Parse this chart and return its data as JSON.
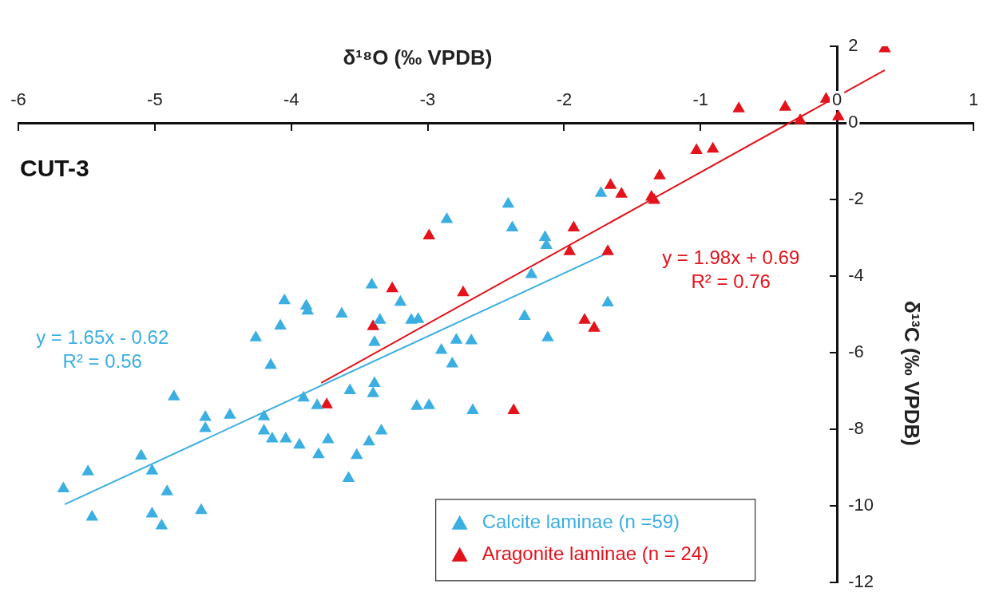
{
  "chart_data": {
    "type": "scatter",
    "xlabel": "δ¹⁸O (‰ VPDB)",
    "ylabel": "δ¹³C (‰ VPDB)",
    "xlim": [
      -6,
      1
    ],
    "xticks": [
      -6,
      -5,
      -4,
      -3,
      -2,
      -1,
      0,
      1
    ],
    "ylim": [
      -12,
      2
    ],
    "yticks": [
      -12,
      -10,
      -8,
      -6,
      -4,
      -2,
      0,
      2
    ],
    "grid": false,
    "legend": "bottom right",
    "annotations": [
      "CUT-3",
      "y = 1.65x - 0.62\nR² = 0.56",
      "y = 1.98x + 0.69\nR² = 0.76"
    ],
    "series": [
      {
        "name": "Calcite laminae (n =59)",
        "color": "#3baee2",
        "marker": "triangle",
        "x": [
          -5.67,
          -5.49,
          -5.46,
          -5.1,
          -5.02,
          -4.91,
          -5.02,
          -4.95,
          -4.86,
          -4.66,
          -4.63,
          -4.63,
          -4.45,
          -4.26,
          -4.2,
          -4.2,
          -4.15,
          -4.14,
          -4.04,
          -4.08,
          -4.05,
          -3.94,
          -3.91,
          -3.89,
          -3.88,
          -3.81,
          -3.8,
          -3.73,
          -3.63,
          -3.58,
          -3.57,
          -3.52,
          -3.43,
          -3.41,
          -3.4,
          -3.39,
          -3.39,
          -3.35,
          -3.34,
          -3.2,
          -3.12,
          -3.07,
          -3.08,
          -2.99,
          -2.9,
          -2.82,
          -2.79,
          -2.86,
          -2.67,
          -2.68,
          -2.41,
          -2.38,
          -2.29,
          -2.24,
          -2.14,
          -2.13,
          -2.12,
          -1.73,
          -1.68
        ],
        "values": [
          -9.55,
          -9.11,
          -10.29,
          -8.7,
          -9.09,
          -9.63,
          -10.21,
          -10.52,
          -7.15,
          -10.12,
          -7.69,
          -7.98,
          -7.63,
          -5.61,
          -7.67,
          -8.04,
          -6.33,
          -8.25,
          -8.25,
          -5.3,
          -4.64,
          -8.41,
          -7.18,
          -4.78,
          -4.91,
          -7.38,
          -8.66,
          -8.27,
          -4.99,
          -9.28,
          -6.99,
          -8.68,
          -8.33,
          -4.23,
          -7.07,
          -6.8,
          -5.73,
          -5.15,
          -8.04,
          -4.68,
          -5.15,
          -5.13,
          -7.4,
          -7.38,
          -5.94,
          -6.29,
          -5.67,
          -2.52,
          -7.51,
          -5.69,
          -2.12,
          -2.74,
          -5.05,
          -3.96,
          -2.99,
          -3.2,
          -5.61,
          -1.84,
          -4.7
        ]
      },
      {
        "name": "Aragonite laminae (n = 24)",
        "color": "#e3121b",
        "marker": "triangle",
        "x": [
          -3.74,
          -3.4,
          -3.26,
          -2.99,
          -2.74,
          -2.37,
          -1.93,
          -1.96,
          -1.85,
          -1.78,
          -1.68,
          -1.66,
          -1.58,
          -1.36,
          -1.34,
          -1.3,
          -1.03,
          -0.91,
          -0.72,
          -0.38,
          -0.27,
          -0.08,
          0.01,
          0.35
        ],
        "values": [
          -7.36,
          -5.32,
          -4.33,
          -2.95,
          -4.43,
          -7.51,
          -2.74,
          -3.36,
          -5.15,
          -5.36,
          -3.36,
          -1.63,
          -1.86,
          -1.94,
          -2.02,
          -1.38,
          -0.72,
          -0.68,
          0.37,
          0.41,
          0.06,
          0.62,
          0.16,
          1.94
        ]
      },
      {
        "color": "#3baee2",
        "type": "line",
        "marker": "none",
        "x": [
          -5.66,
          -1.7
        ],
        "values": [
          -9.96,
          -3.43
        ]
      },
      {
        "color": "#e3121b",
        "type": "line",
        "marker": "none",
        "x": [
          -3.78,
          0.35
        ],
        "values": [
          -6.79,
          1.38
        ]
      }
    ]
  }
}
